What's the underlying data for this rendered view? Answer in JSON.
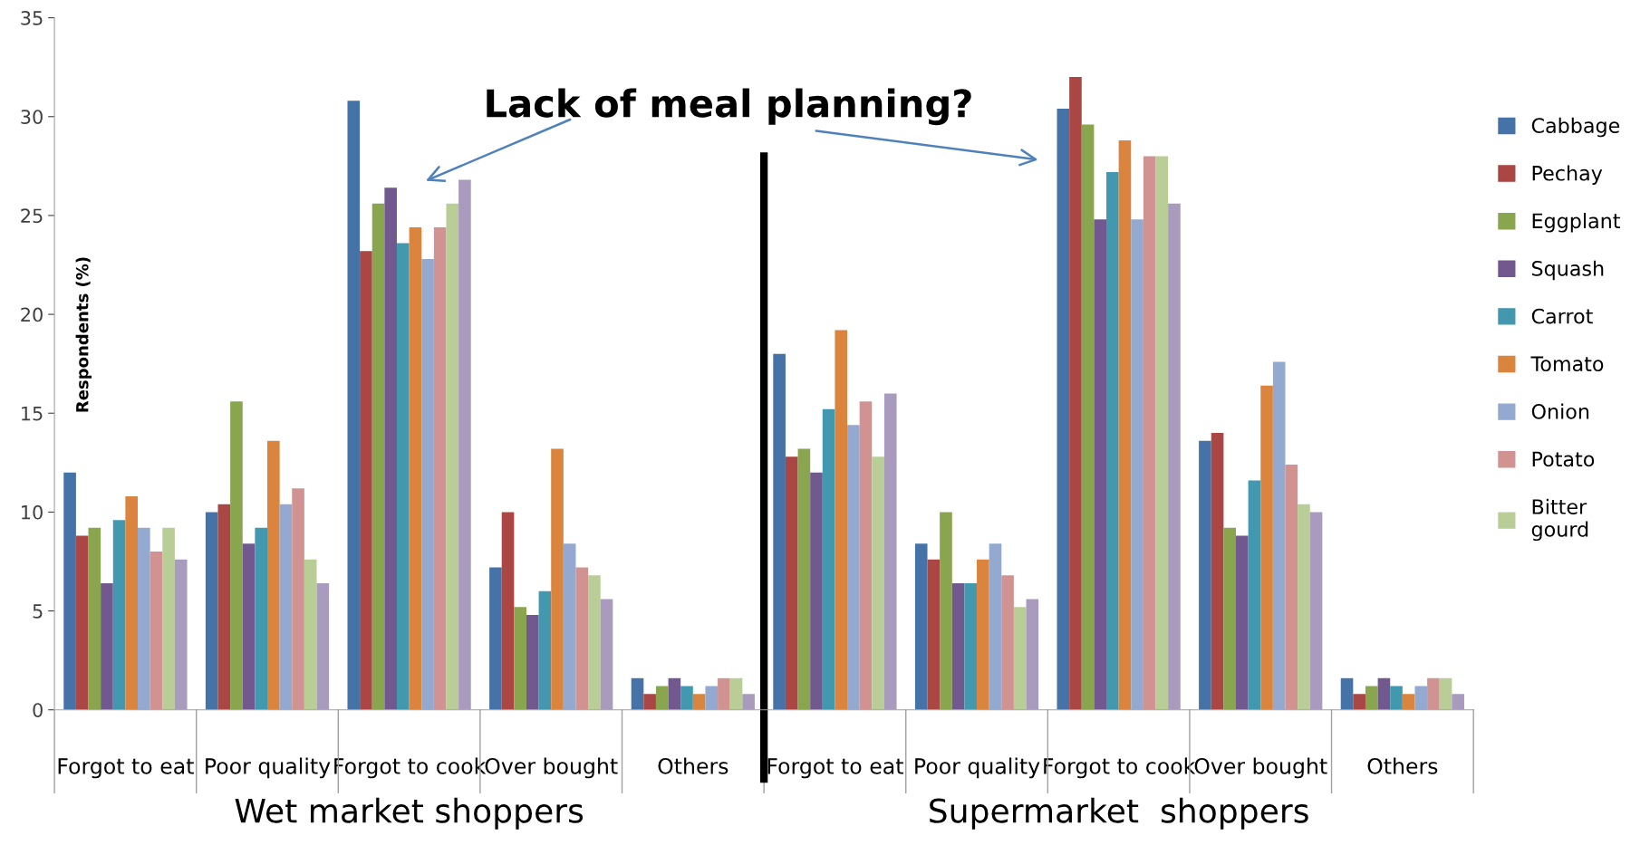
{
  "chart_data": {
    "type": "bar",
    "ylabel": "Respondents (%)",
    "categories": [
      "Forgot to eat",
      "Poor quality",
      "Forgot to cook",
      "Over bought",
      "Others",
      "Forgot to eat",
      "Poor quality",
      "Forgot to cook",
      "Over bought",
      "Others"
    ],
    "series": [
      {
        "name": "Cabbage",
        "color": "#4572a7",
        "values": [
          12,
          10,
          30.8,
          7.2,
          1.6,
          18,
          8.4,
          30.4,
          13.6,
          1.6
        ]
      },
      {
        "name": "Pechay",
        "color": "#aa4643",
        "values": [
          8.8,
          10.4,
          23.2,
          10,
          0.8,
          12.8,
          7.6,
          32,
          14,
          0.8
        ]
      },
      {
        "name": "Eggplant",
        "color": "#89a54e",
        "values": [
          9.2,
          15.6,
          25.6,
          5.2,
          1.2,
          13.2,
          10,
          29.6,
          9.2,
          1.2
        ]
      },
      {
        "name": "Squash",
        "color": "#71588f",
        "values": [
          6.4,
          8.4,
          26.4,
          4.8,
          1.6,
          12,
          6.4,
          24.8,
          8.8,
          1.6
        ]
      },
      {
        "name": "Carrot",
        "color": "#4198af",
        "values": [
          9.6,
          9.2,
          23.6,
          6,
          1.2,
          15.2,
          6.4,
          27.2,
          11.6,
          1.2
        ]
      },
      {
        "name": "Tomato",
        "color": "#db843d",
        "values": [
          10.8,
          13.6,
          24.4,
          13.2,
          0.8,
          19.2,
          7.6,
          28.8,
          16.4,
          0.8
        ]
      },
      {
        "name": "Onion",
        "color": "#93a9cf",
        "values": [
          9.2,
          10.4,
          22.8,
          8.4,
          1.2,
          14.4,
          8.4,
          24.8,
          17.6,
          1.2
        ]
      },
      {
        "name": "Potato",
        "color": "#d19392",
        "values": [
          8,
          11.2,
          24.4,
          7.2,
          1.6,
          15.6,
          6.8,
          28,
          12.4,
          1.6
        ]
      },
      {
        "name": "Bitter\ngourd",
        "color": "#b9cd96",
        "values": [
          9.2,
          7.6,
          25.6,
          6.8,
          1.6,
          12.8,
          5.2,
          28,
          10.4,
          1.6
        ]
      },
      {
        "color": "#a99bbd",
        "values": [
          7.6,
          6.4,
          26.8,
          5.6,
          0.8,
          16,
          5.6,
          25.6,
          10,
          0.8
        ]
      }
    ],
    "ylim": [
      0,
      35
    ],
    "yticks": [
      0,
      5,
      10,
      15,
      20,
      25,
      30,
      35
    ],
    "grid": false,
    "legend": "right",
    "annotations": [
      "Lack of meal planning?",
      "Wet market shoppers",
      "Supermarket  shoppers"
    ]
  }
}
